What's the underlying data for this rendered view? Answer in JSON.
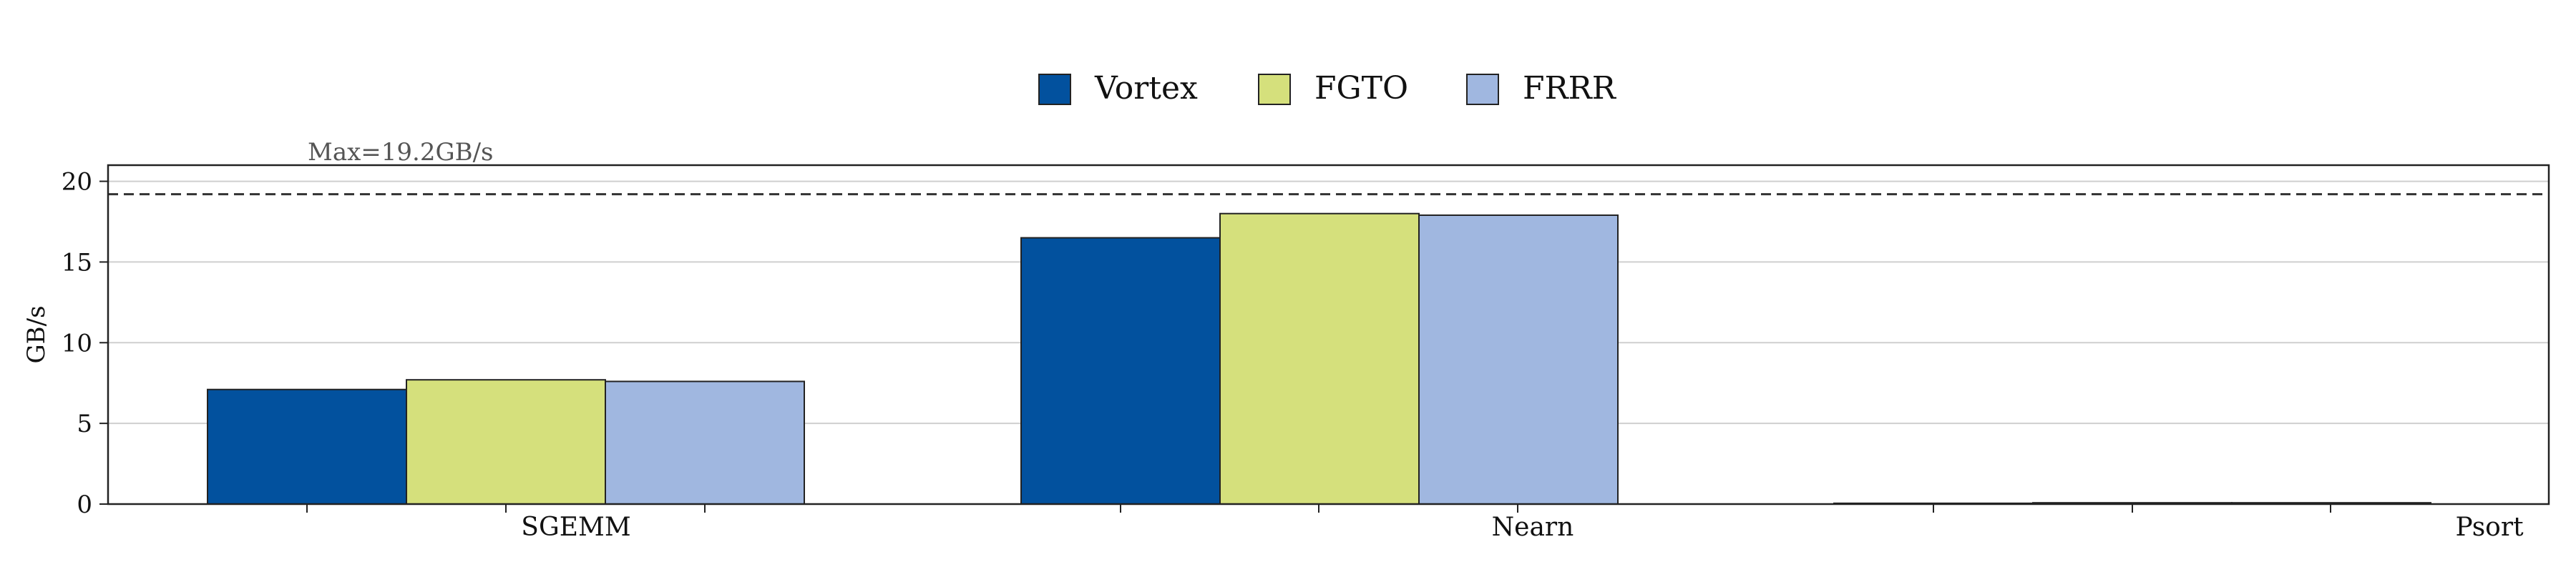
{
  "chart_data": {
    "type": "bar",
    "categories": [
      "SGEMM",
      "Nearn",
      "Psort"
    ],
    "series": [
      {
        "name": "Vortex",
        "color": "#02519e",
        "values": [
          7.1,
          16.5,
          0.05
        ]
      },
      {
        "name": "FGTO",
        "color": "#d5e07c",
        "values": [
          7.7,
          18.0,
          0.08
        ]
      },
      {
        "name": "FRRR",
        "color": "#a0b7e0",
        "values": [
          7.6,
          17.9,
          0.08
        ]
      }
    ],
    "ylabel": "GB/s",
    "xlabel": "",
    "title": "",
    "ylim": [
      0,
      21
    ],
    "yticks": [
      0,
      5,
      10,
      15,
      20
    ],
    "grid": "horizontal",
    "legend_position": "top-center",
    "reference_line": {
      "value": 19.2,
      "label": "Max=19.2GB/s",
      "style": "dashed"
    }
  }
}
